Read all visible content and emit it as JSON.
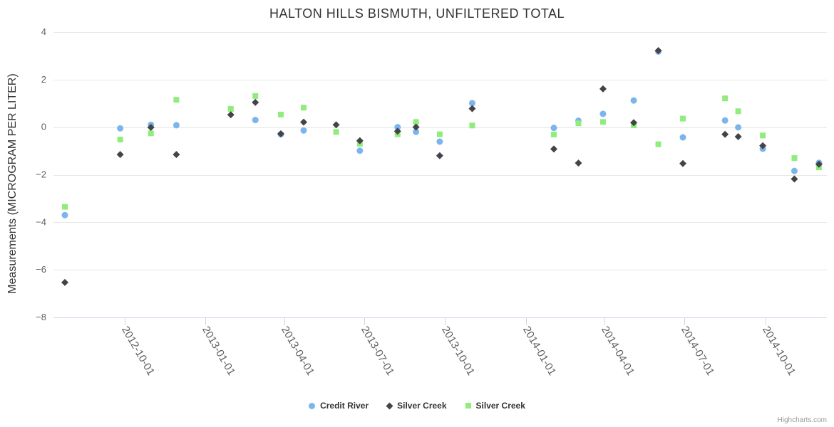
{
  "chart_data": {
    "type": "scatter",
    "title": "HALTON HILLS BISMUTH, UNFILTERED TOTAL",
    "xlabel": "",
    "ylabel": "Measurements (MICROGRAM PER LITER)",
    "ylim": [
      -8,
      4
    ],
    "y_ticks": [
      4,
      2,
      0,
      -2,
      -4,
      -6,
      -8
    ],
    "x_ticks": [
      "2012-10-01",
      "2013-01-01",
      "2013-04-01",
      "2013-07-01",
      "2013-10-01",
      "2014-01-01",
      "2014-04-01",
      "2014-07-01",
      "2014-10-01"
    ],
    "x_range": [
      "2012-07-12",
      "2014-12-10"
    ],
    "grid": "horizontal",
    "legend_position": "bottom-center",
    "credits": "Highcharts.com",
    "colors": {
      "grid": "#e6e6e6",
      "axis": "#ccd6eb",
      "axis_label": "#606060",
      "title": "#333333"
    },
    "series": [
      {
        "name": "Credit River",
        "marker": "circle",
        "color": "#7cb5ec",
        "points": [
          [
            "2012-07-25",
            -3.7
          ],
          [
            "2012-09-26",
            -0.05
          ],
          [
            "2012-10-31",
            0.1
          ],
          [
            "2012-11-29",
            0.08
          ],
          [
            "2013-02-27",
            0.3
          ],
          [
            "2013-03-28",
            -0.3
          ],
          [
            "2013-04-23",
            -0.14
          ],
          [
            "2013-06-26",
            -0.99
          ],
          [
            "2013-08-08",
            0.0
          ],
          [
            "2013-08-29",
            -0.2
          ],
          [
            "2013-09-25",
            -0.61
          ],
          [
            "2013-11-01",
            1.01
          ],
          [
            "2014-02-02",
            -0.03
          ],
          [
            "2014-03-02",
            0.27
          ],
          [
            "2014-03-30",
            0.56
          ],
          [
            "2014-05-04",
            1.12
          ],
          [
            "2014-06-01",
            3.18
          ],
          [
            "2014-06-29",
            -0.43
          ],
          [
            "2014-08-16",
            0.28
          ],
          [
            "2014-08-31",
            -0.01
          ],
          [
            "2014-09-28",
            -0.91
          ],
          [
            "2014-11-03",
            -1.84
          ],
          [
            "2014-12-01",
            -1.5
          ]
        ]
      },
      {
        "name": "Silver Creek",
        "marker": "diamond",
        "color": "#434348",
        "points": [
          [
            "2012-07-25",
            -6.53
          ],
          [
            "2012-09-26",
            -1.15
          ],
          [
            "2012-10-31",
            -0.01
          ],
          [
            "2012-11-29",
            -1.15
          ],
          [
            "2013-01-30",
            0.52
          ],
          [
            "2013-02-27",
            1.04
          ],
          [
            "2013-03-28",
            -0.28
          ],
          [
            "2013-04-23",
            0.21
          ],
          [
            "2013-05-30",
            0.1
          ],
          [
            "2013-06-26",
            -0.57
          ],
          [
            "2013-08-08",
            -0.17
          ],
          [
            "2013-08-29",
            0.0
          ],
          [
            "2013-09-25",
            -1.2
          ],
          [
            "2013-11-01",
            0.78
          ],
          [
            "2014-02-02",
            -0.92
          ],
          [
            "2014-03-02",
            -1.51
          ],
          [
            "2014-03-30",
            1.61
          ],
          [
            "2014-05-04",
            0.19
          ],
          [
            "2014-06-01",
            3.22
          ],
          [
            "2014-06-29",
            -1.53
          ],
          [
            "2014-08-16",
            -0.3
          ],
          [
            "2014-08-31",
            -0.4
          ],
          [
            "2014-09-28",
            -0.78
          ],
          [
            "2014-11-03",
            -2.18
          ],
          [
            "2014-12-01",
            -1.56
          ]
        ]
      },
      {
        "name": "Silver Creek",
        "marker": "square",
        "color": "#90ed7d",
        "points": [
          [
            "2012-07-25",
            -3.35
          ],
          [
            "2012-09-26",
            -0.52
          ],
          [
            "2012-10-31",
            -0.26
          ],
          [
            "2012-11-29",
            1.15
          ],
          [
            "2013-01-30",
            0.77
          ],
          [
            "2013-02-27",
            1.31
          ],
          [
            "2013-03-28",
            0.53
          ],
          [
            "2013-04-23",
            0.82
          ],
          [
            "2013-05-30",
            -0.2
          ],
          [
            "2013-06-26",
            -0.7
          ],
          [
            "2013-08-08",
            -0.3
          ],
          [
            "2013-08-29",
            0.22
          ],
          [
            "2013-09-25",
            -0.3
          ],
          [
            "2013-11-01",
            0.07
          ],
          [
            "2014-02-02",
            -0.31
          ],
          [
            "2014-03-02",
            0.16
          ],
          [
            "2014-03-30",
            0.22
          ],
          [
            "2014-05-04",
            0.08
          ],
          [
            "2014-06-01",
            -0.72
          ],
          [
            "2014-06-29",
            0.36
          ],
          [
            "2014-08-16",
            1.21
          ],
          [
            "2014-08-31",
            0.67
          ],
          [
            "2014-09-28",
            -0.35
          ],
          [
            "2014-11-03",
            -1.3
          ],
          [
            "2014-12-01",
            -1.69
          ]
        ]
      }
    ]
  }
}
